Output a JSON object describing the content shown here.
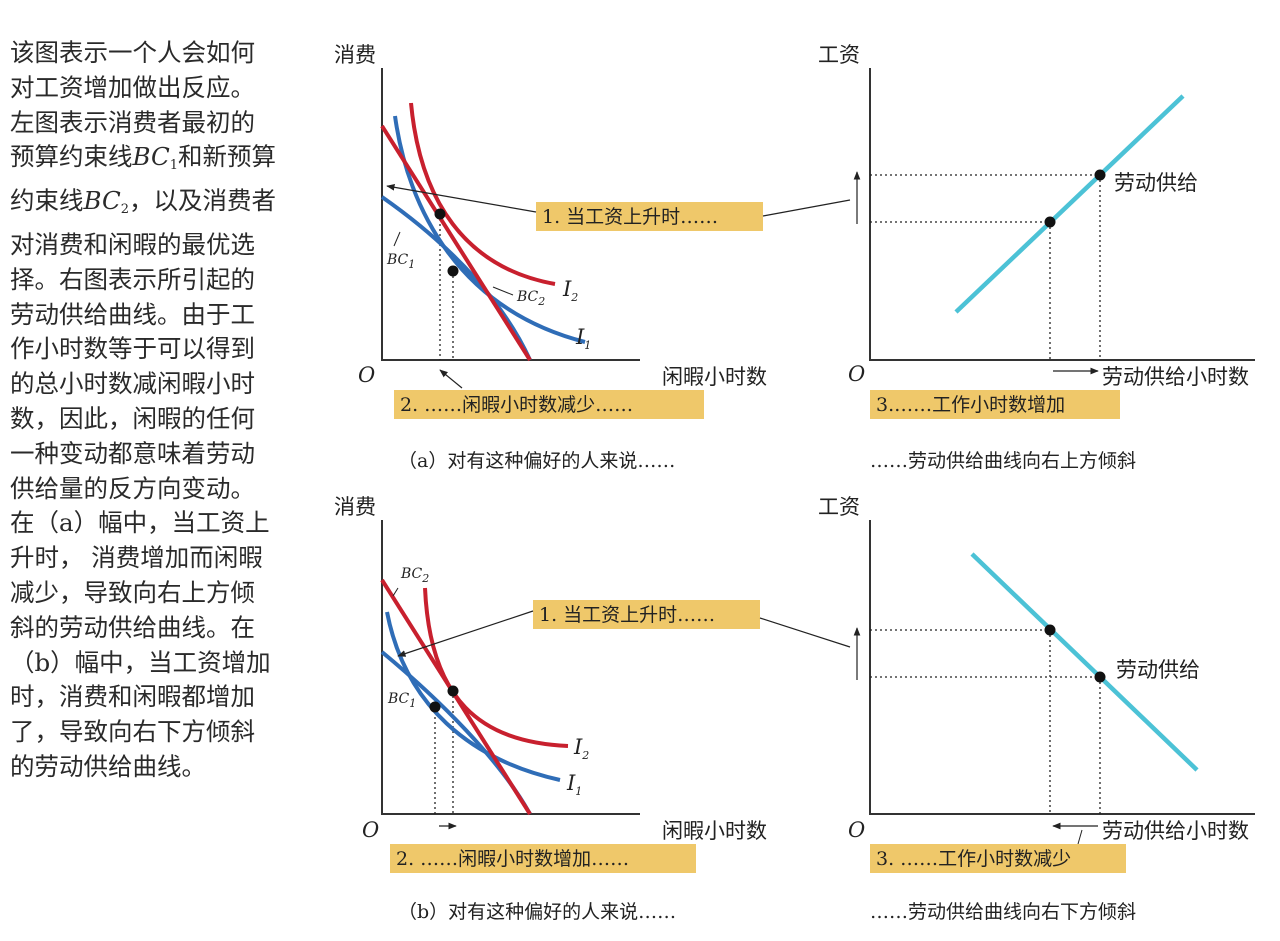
{
  "sidebar": {
    "lines": [
      "该图表示一个人会如何",
      "对工资增加做出反应。",
      "左图表示消费者最初的",
      "预算约束线",
      "和新预算",
      "约束线",
      "，以及消费者",
      "对消费和闲暇的最优选",
      "择。右图表示所引起的",
      "劳动供给曲线。由于工",
      "作小时数等于可以得到",
      "的总小时数减闲暇小时",
      "数，因此，闲暇的任何",
      "一种变动都意味着劳动",
      "供给量的反方向变动。",
      "在（a）幅中，当工资上",
      "升时， 消费增加而闲暇",
      "减少，导致向右上方倾",
      "斜的劳动供给曲线。在",
      "（b）幅中，当工资增加",
      "时，消费和闲暇都增加",
      "了，导致向右下方倾斜",
      "的劳动供给曲线。"
    ],
    "bc1": "BC",
    "bc1_sub": "1",
    "bc2": "BC",
    "bc2_sub": "2"
  },
  "panel_a": {
    "left": {
      "y_axis": "消费",
      "x_axis": "闲暇小时数",
      "origin": "O",
      "bc1": "BC",
      "bc1_sub": "1",
      "bc2": "BC",
      "bc2_sub": "2",
      "i1": "I",
      "i1_sub": "1",
      "i2": "I",
      "i2_sub": "2"
    },
    "right": {
      "y_axis": "工资",
      "x_axis": "劳动供给小时数",
      "origin": "O",
      "curve_label": "劳动供给"
    },
    "box1": "1. 当工资上升时……",
    "box2": "2. ……闲暇小时数减少……",
    "box3": "3.……工作小时数增加",
    "caption_left": "（a）对有这种偏好的人来说……",
    "caption_right": "……劳动供给曲线向右上方倾斜"
  },
  "panel_b": {
    "left": {
      "y_axis": "消费",
      "x_axis": "闲暇小时数",
      "origin": "O",
      "bc1": "BC",
      "bc1_sub": "1",
      "bc2": "BC",
      "bc2_sub": "2",
      "i1": "I",
      "i1_sub": "1",
      "i2": "I",
      "i2_sub": "2"
    },
    "right": {
      "y_axis": "工资",
      "x_axis": "劳动供给小时数",
      "origin": "O",
      "curve_label": "劳动供给"
    },
    "box1": "1. 当工资上升时……",
    "box2": "2. ……闲暇小时数增加……",
    "box3": "3. ……工作小时数减少",
    "caption_left": "（b）对有这种偏好的人来说……",
    "caption_right": "……劳动供给曲线向右下方倾斜"
  },
  "colors": {
    "red": "#c8202e",
    "blue": "#2f6db7",
    "supply": "#4cc2d6",
    "box": "#efc86a",
    "axis": "#333333"
  }
}
